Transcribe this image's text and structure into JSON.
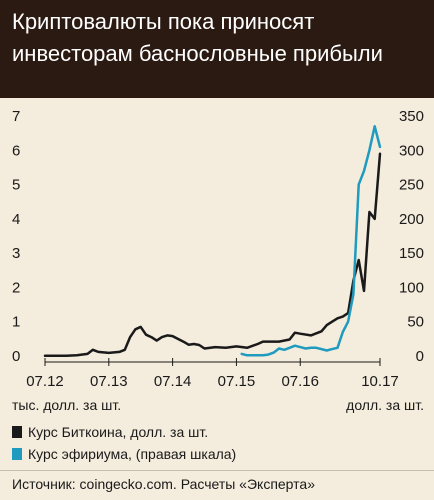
{
  "header": {
    "title": "Криптовалюты пока приносят инвесторам баснословные прибыли"
  },
  "units": {
    "left": "тыс. долл. за шт.",
    "right": "долл. за шт."
  },
  "legend": {
    "items": [
      {
        "label": "Курс Биткоина, долл. за шт.",
        "color": "#1a1a1a"
      },
      {
        "label": "Курс эфириума, (правая шкала)",
        "color": "#1e9bbf"
      }
    ]
  },
  "source": "Источник: coingecko.com. Расчеты «Эксперта»",
  "chart_data": {
    "type": "line",
    "x_ticks": [
      "07.12",
      "07.13",
      "07.14",
      "07.15",
      "07.16",
      "10.17"
    ],
    "y_left": {
      "range": [
        0,
        7
      ],
      "ticks": [
        "0",
        "1",
        "2",
        "3",
        "4",
        "5",
        "6",
        "7"
      ]
    },
    "y_right": {
      "range": [
        0,
        350
      ],
      "ticks": [
        "0",
        "50",
        "100",
        "150",
        "200",
        "250",
        "300",
        "350"
      ]
    },
    "grid": false,
    "series": [
      {
        "name": "Курс Биткоина, долл. за шт.",
        "axis": "left",
        "color": "#1a1a1a",
        "x": [
          "2012-07",
          "2012-09",
          "2012-11",
          "2013-01",
          "2013-03",
          "2013-04",
          "2013-05",
          "2013-07",
          "2013-09",
          "2013-10",
          "2013-11",
          "2013-12",
          "2014-01",
          "2014-02",
          "2014-03",
          "2014-04",
          "2014-05",
          "2014-06",
          "2014-07",
          "2014-08",
          "2014-09",
          "2014-10",
          "2014-11",
          "2014-12",
          "2015-01",
          "2015-03",
          "2015-05",
          "2015-07",
          "2015-09",
          "2015-11",
          "2015-12",
          "2016-01",
          "2016-03",
          "2016-05",
          "2016-06",
          "2016-07",
          "2016-09",
          "2016-11",
          "2016-12",
          "2017-01",
          "2017-02",
          "2017-03",
          "2017-04",
          "2017-05",
          "2017-06",
          "2017-07",
          "2017-08",
          "2017-09",
          "2017-10"
        ],
        "y": [
          0.01,
          0.01,
          0.01,
          0.02,
          0.06,
          0.18,
          0.12,
          0.09,
          0.12,
          0.18,
          0.55,
          0.78,
          0.85,
          0.62,
          0.55,
          0.45,
          0.55,
          0.6,
          0.58,
          0.5,
          0.42,
          0.33,
          0.35,
          0.32,
          0.22,
          0.26,
          0.24,
          0.28,
          0.24,
          0.35,
          0.42,
          0.42,
          0.42,
          0.48,
          0.68,
          0.65,
          0.6,
          0.72,
          0.9,
          1.0,
          1.1,
          1.15,
          1.25,
          2.2,
          2.8,
          1.9,
          4.2,
          4.0,
          5.9
        ]
      },
      {
        "name": "Курс эфириума, (правая шкала)",
        "axis": "right",
        "color": "#1e9bbf",
        "x": [
          "2015-08",
          "2015-09",
          "2015-11",
          "2015-12",
          "2016-01",
          "2016-02",
          "2016-03",
          "2016-04",
          "2016-05",
          "2016-06",
          "2016-07",
          "2016-08",
          "2016-09",
          "2016-10",
          "2016-11",
          "2016-12",
          "2017-01",
          "2017-02",
          "2017-03",
          "2017-04",
          "2017-05",
          "2017-06",
          "2017-07",
          "2017-08",
          "2017-09",
          "2017-10"
        ],
        "y": [
          3,
          1,
          1,
          1,
          2,
          5,
          11,
          9,
          12,
          15,
          13,
          11,
          12,
          12,
          10,
          8,
          10,
          12,
          35,
          50,
          90,
          250,
          270,
          300,
          335,
          305
        ]
      }
    ]
  }
}
